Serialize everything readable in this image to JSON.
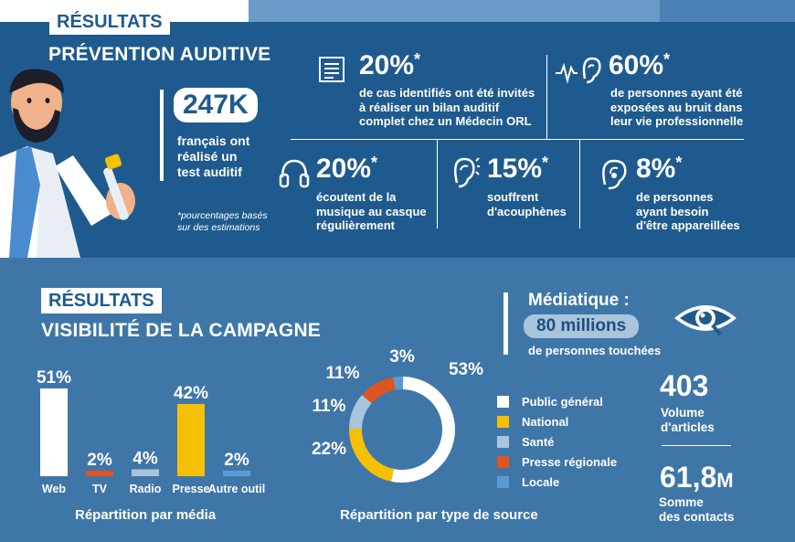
{
  "colors": {
    "dark_blue": "#1f5a8e",
    "mid_blue": "#3f76a8",
    "yellow": "#f5c000",
    "orange": "#e0541f",
    "light_blue_grey": "#a9c4dd",
    "light_blue": "#5b9bd5",
    "white": "#ffffff"
  },
  "prevention": {
    "tag": "RÉSULTATS",
    "title": "PRÉVENTION AUDITIVE",
    "headline_value": "247K",
    "headline_text": [
      "français ont",
      "réalisé un",
      "test auditif"
    ],
    "footnote": [
      "*pourcentages basés",
      "sur des estimations"
    ],
    "stats": [
      {
        "value": "20%",
        "star": "*",
        "icon": "document-icon",
        "text": [
          "de cas identifiés ont été invités",
          "à réaliser un bilan auditif",
          "complet chez un Médecin ORL"
        ]
      },
      {
        "value": "60%",
        "star": "*",
        "icon": "ear-noise-icon",
        "text": [
          "de personnes ayant été",
          "exposées au bruit dans",
          "leur vie professionnelle"
        ]
      },
      {
        "value": "20%",
        "star": "*",
        "icon": "headphones-icon",
        "text": [
          "écoutent de la",
          "musique au casque",
          "régulièrement"
        ]
      },
      {
        "value": "15%",
        "star": "*",
        "icon": "ear-ringing-icon",
        "text": [
          "souffrent",
          "d'acouphènes"
        ]
      },
      {
        "value": "8%",
        "star": "*",
        "icon": "hearing-aid-icon",
        "text": [
          "de personnes",
          "ayant besoin",
          "d'être appareillées"
        ]
      }
    ]
  },
  "visibility": {
    "tag": "RÉSULTATS",
    "title": "VISIBILITÉ DE LA CAMPAGNE",
    "media_label": "Médiatique :",
    "media_value": "80 millions",
    "media_text": "de personnes touchées",
    "articles_value": "403",
    "articles_label": [
      "Volume",
      "d'articles"
    ],
    "contacts_value": "61,8",
    "contacts_unit": "M",
    "contacts_label": [
      "Somme",
      "des contacts"
    ]
  },
  "chart_data": [
    {
      "type": "bar",
      "title": "Répartition par média",
      "categories": [
        "Web",
        "TV",
        "Radio",
        "Presse",
        "Autre outil"
      ],
      "values": [
        51,
        2,
        4,
        42,
        2
      ],
      "value_labels": [
        "51%",
        "2%",
        "4%",
        "42%",
        "2%"
      ],
      "colors": [
        "#ffffff",
        "#e0541f",
        "#a9c4dd",
        "#f5c000",
        "#5b9bd5"
      ],
      "ylim": [
        0,
        51
      ]
    },
    {
      "type": "pie",
      "title": "Répartition par type de source",
      "categories": [
        "Public général",
        "National",
        "Santé",
        "Presse régionale",
        "Locale"
      ],
      "values": [
        53,
        22,
        11,
        11,
        3
      ],
      "value_labels": [
        "53%",
        "22%",
        "11%",
        "11%",
        "3%"
      ],
      "colors": [
        "#ffffff",
        "#f5c000",
        "#a9c4dd",
        "#e0541f",
        "#5b9bd5"
      ]
    }
  ]
}
